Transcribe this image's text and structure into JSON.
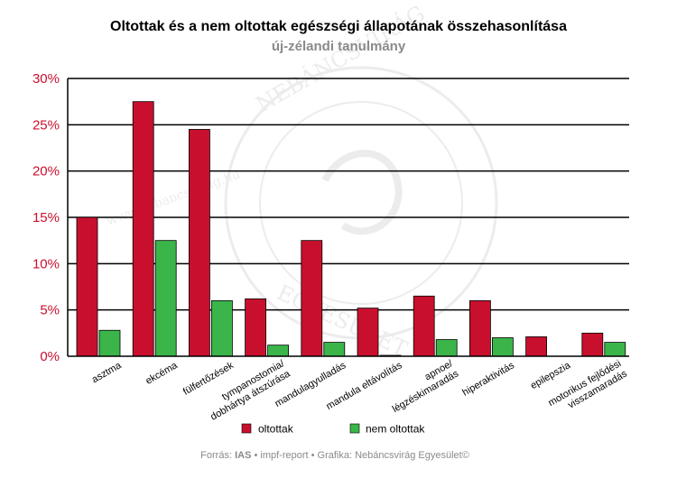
{
  "chart_data": {
    "type": "bar",
    "title": "Oltottak és a nem oltottak egészségi állapotának összehasonlítása",
    "subtitle": "új-zélandi tanulmány",
    "categories": [
      [
        "asztma"
      ],
      [
        "ekcéma"
      ],
      [
        "fülfertőzések"
      ],
      [
        "tympanostomia/",
        "dobhártya átszúrása"
      ],
      [
        "mandulagyulladás"
      ],
      [
        "mandula eltávolítás"
      ],
      [
        "apnoe/",
        "légzéskimaradás"
      ],
      [
        "hiperaktivitás"
      ],
      [
        "epilepszia"
      ],
      [
        "motorikus fejlődési",
        "visszamaradás"
      ]
    ],
    "series": [
      {
        "name": "oltottak",
        "color": "#c8102e",
        "values": [
          15.0,
          27.5,
          24.5,
          6.2,
          12.5,
          5.2,
          6.5,
          6.0,
          2.1,
          2.5
        ]
      },
      {
        "name": "nem oltottak",
        "color": "#3bb54a",
        "values": [
          2.8,
          12.5,
          6.0,
          1.2,
          1.5,
          0.1,
          1.8,
          2.0,
          0.0,
          1.5
        ]
      }
    ],
    "ylim": [
      0,
      30
    ],
    "yticks": [
      0,
      5,
      10,
      15,
      20,
      25,
      30
    ],
    "ytick_labels": [
      "0%",
      "5%",
      "10%",
      "15%",
      "20%",
      "25%",
      "30%"
    ],
    "grid": true,
    "legend_position": "bottom-center",
    "source": {
      "prefix": "Forrás: ",
      "org": "IAS",
      "rest": " • impf-report • Grafika: Nebáncsvirág Egyesület©"
    },
    "watermark": {
      "text_top": "NEBÁNCSVIRÁG",
      "text_bottom": "EGYESÜLET",
      "url": "www.nebancsvirag.hu"
    }
  }
}
